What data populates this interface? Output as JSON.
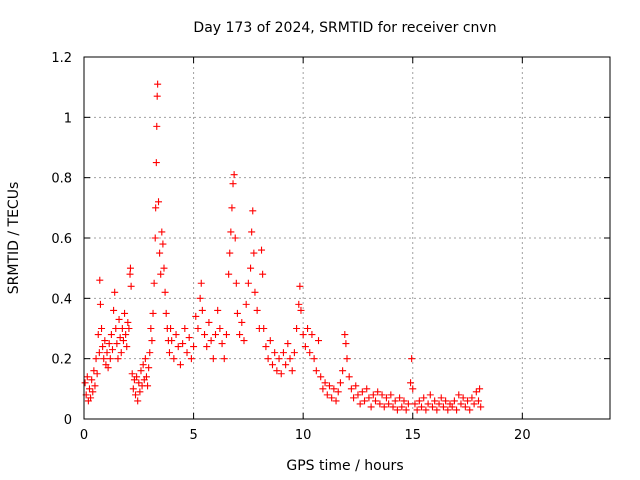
{
  "chart_data": {
    "type": "scatter",
    "title": "Day 173 of 2024, SRMTID for receiver cnvn",
    "xlabel": "GPS time / hours",
    "ylabel": "SRMTID / TECUs",
    "xlim": [
      0,
      24
    ],
    "ylim": [
      0,
      1.2
    ],
    "xticks": [
      0,
      5,
      10,
      15,
      20
    ],
    "xtick_labels": [
      "0",
      "5",
      "10",
      "15",
      "20"
    ],
    "yticks": [
      0,
      0.2,
      0.4,
      0.6,
      0.8,
      1.0,
      1.2
    ],
    "ytick_labels": [
      "0",
      "0.2",
      "0.4",
      "0.6",
      "0.8",
      "1",
      "1.2"
    ],
    "grid": true,
    "marker": "+",
    "color": "#ff0000",
    "series": [
      {
        "name": "SRMTID",
        "points": [
          [
            0.05,
            0.12
          ],
          [
            0.1,
            0.08
          ],
          [
            0.15,
            0.14
          ],
          [
            0.2,
            0.06
          ],
          [
            0.25,
            0.1
          ],
          [
            0.3,
            0.07
          ],
          [
            0.35,
            0.13
          ],
          [
            0.4,
            0.09
          ],
          [
            0.45,
            0.16
          ],
          [
            0.5,
            0.11
          ],
          [
            0.55,
            0.2
          ],
          [
            0.6,
            0.15
          ],
          [
            0.65,
            0.28
          ],
          [
            0.7,
            0.22
          ],
          [
            0.72,
            0.46
          ],
          [
            0.75,
            0.38
          ],
          [
            0.8,
            0.3
          ],
          [
            0.85,
            0.24
          ],
          [
            0.9,
            0.2
          ],
          [
            0.95,
            0.26
          ],
          [
            1.0,
            0.18
          ],
          [
            1.05,
            0.22
          ],
          [
            1.1,
            0.17
          ],
          [
            1.15,
            0.25
          ],
          [
            1.2,
            0.2
          ],
          [
            1.25,
            0.28
          ],
          [
            1.3,
            0.23
          ],
          [
            1.35,
            0.36
          ],
          [
            1.4,
            0.42
          ],
          [
            1.45,
            0.3
          ],
          [
            1.5,
            0.25
          ],
          [
            1.55,
            0.2
          ],
          [
            1.6,
            0.33
          ],
          [
            1.65,
            0.27
          ],
          [
            1.7,
            0.22
          ],
          [
            1.75,
            0.3
          ],
          [
            1.8,
            0.26
          ],
          [
            1.85,
            0.35
          ],
          [
            1.9,
            0.28
          ],
          [
            1.95,
            0.24
          ],
          [
            2.0,
            0.32
          ],
          [
            2.05,
            0.3
          ],
          [
            2.1,
            0.48
          ],
          [
            2.12,
            0.5
          ],
          [
            2.15,
            0.44
          ],
          [
            2.2,
            0.15
          ],
          [
            2.25,
            0.1
          ],
          [
            2.3,
            0.13
          ],
          [
            2.35,
            0.08
          ],
          [
            2.4,
            0.14
          ],
          [
            2.45,
            0.06
          ],
          [
            2.5,
            0.12
          ],
          [
            2.55,
            0.09
          ],
          [
            2.6,
            0.16
          ],
          [
            2.65,
            0.11
          ],
          [
            2.7,
            0.18
          ],
          [
            2.75,
            0.13
          ],
          [
            2.8,
            0.2
          ],
          [
            2.85,
            0.14
          ],
          [
            2.9,
            0.11
          ],
          [
            2.95,
            0.17
          ],
          [
            3.0,
            0.22
          ],
          [
            3.05,
            0.3
          ],
          [
            3.1,
            0.26
          ],
          [
            3.15,
            0.35
          ],
          [
            3.2,
            0.45
          ],
          [
            3.25,
            0.6
          ],
          [
            3.27,
            0.7
          ],
          [
            3.3,
            0.85
          ],
          [
            3.32,
            0.97
          ],
          [
            3.34,
            1.07
          ],
          [
            3.36,
            1.11
          ],
          [
            3.4,
            0.72
          ],
          [
            3.45,
            0.55
          ],
          [
            3.5,
            0.48
          ],
          [
            3.55,
            0.62
          ],
          [
            3.6,
            0.58
          ],
          [
            3.65,
            0.5
          ],
          [
            3.7,
            0.42
          ],
          [
            3.75,
            0.35
          ],
          [
            3.8,
            0.3
          ],
          [
            3.85,
            0.26
          ],
          [
            3.9,
            0.22
          ],
          [
            3.95,
            0.3
          ],
          [
            4.0,
            0.26
          ],
          [
            4.1,
            0.2
          ],
          [
            4.2,
            0.28
          ],
          [
            4.3,
            0.24
          ],
          [
            4.4,
            0.18
          ],
          [
            4.5,
            0.25
          ],
          [
            4.6,
            0.3
          ],
          [
            4.7,
            0.22
          ],
          [
            4.8,
            0.27
          ],
          [
            4.9,
            0.2
          ],
          [
            5.0,
            0.24
          ],
          [
            5.1,
            0.34
          ],
          [
            5.2,
            0.3
          ],
          [
            5.3,
            0.4
          ],
          [
            5.35,
            0.45
          ],
          [
            5.4,
            0.36
          ],
          [
            5.5,
            0.28
          ],
          [
            5.6,
            0.24
          ],
          [
            5.7,
            0.32
          ],
          [
            5.8,
            0.26
          ],
          [
            5.9,
            0.2
          ],
          [
            6.0,
            0.28
          ],
          [
            6.1,
            0.36
          ],
          [
            6.2,
            0.3
          ],
          [
            6.3,
            0.25
          ],
          [
            6.4,
            0.2
          ],
          [
            6.5,
            0.28
          ],
          [
            6.6,
            0.48
          ],
          [
            6.65,
            0.55
          ],
          [
            6.7,
            0.62
          ],
          [
            6.75,
            0.7
          ],
          [
            6.8,
            0.78
          ],
          [
            6.85,
            0.81
          ],
          [
            6.9,
            0.6
          ],
          [
            6.95,
            0.45
          ],
          [
            7.0,
            0.35
          ],
          [
            7.1,
            0.28
          ],
          [
            7.2,
            0.32
          ],
          [
            7.3,
            0.26
          ],
          [
            7.4,
            0.38
          ],
          [
            7.5,
            0.45
          ],
          [
            7.6,
            0.5
          ],
          [
            7.65,
            0.62
          ],
          [
            7.7,
            0.69
          ],
          [
            7.75,
            0.55
          ],
          [
            7.8,
            0.42
          ],
          [
            7.9,
            0.36
          ],
          [
            8.0,
            0.3
          ],
          [
            8.1,
            0.56
          ],
          [
            8.15,
            0.48
          ],
          [
            8.2,
            0.3
          ],
          [
            8.3,
            0.24
          ],
          [
            8.4,
            0.2
          ],
          [
            8.5,
            0.26
          ],
          [
            8.6,
            0.18
          ],
          [
            8.7,
            0.22
          ],
          [
            8.8,
            0.16
          ],
          [
            8.9,
            0.2
          ],
          [
            9.0,
            0.15
          ],
          [
            9.1,
            0.22
          ],
          [
            9.2,
            0.18
          ],
          [
            9.3,
            0.25
          ],
          [
            9.4,
            0.2
          ],
          [
            9.5,
            0.16
          ],
          [
            9.6,
            0.22
          ],
          [
            9.7,
            0.3
          ],
          [
            9.8,
            0.38
          ],
          [
            9.85,
            0.44
          ],
          [
            9.9,
            0.36
          ],
          [
            10.0,
            0.28
          ],
          [
            10.1,
            0.24
          ],
          [
            10.2,
            0.3
          ],
          [
            10.3,
            0.22
          ],
          [
            10.4,
            0.28
          ],
          [
            10.5,
            0.2
          ],
          [
            10.6,
            0.16
          ],
          [
            10.7,
            0.26
          ],
          [
            10.8,
            0.14
          ],
          [
            10.9,
            0.1
          ],
          [
            11.0,
            0.12
          ],
          [
            11.1,
            0.08
          ],
          [
            11.2,
            0.11
          ],
          [
            11.3,
            0.07
          ],
          [
            11.4,
            0.1
          ],
          [
            11.5,
            0.06
          ],
          [
            11.6,
            0.09
          ],
          [
            11.7,
            0.12
          ],
          [
            11.8,
            0.16
          ],
          [
            11.9,
            0.28
          ],
          [
            11.95,
            0.25
          ],
          [
            12.0,
            0.2
          ],
          [
            12.1,
            0.14
          ],
          [
            12.2,
            0.1
          ],
          [
            12.3,
            0.07
          ],
          [
            12.4,
            0.11
          ],
          [
            12.5,
            0.08
          ],
          [
            12.6,
            0.05
          ],
          [
            12.7,
            0.09
          ],
          [
            12.8,
            0.06
          ],
          [
            12.9,
            0.1
          ],
          [
            13.0,
            0.07
          ],
          [
            13.1,
            0.04
          ],
          [
            13.2,
            0.08
          ],
          [
            13.3,
            0.06
          ],
          [
            13.4,
            0.09
          ],
          [
            13.5,
            0.05
          ],
          [
            13.6,
            0.08
          ],
          [
            13.7,
            0.04
          ],
          [
            13.8,
            0.07
          ],
          [
            13.9,
            0.05
          ],
          [
            14.0,
            0.08
          ],
          [
            14.1,
            0.04
          ],
          [
            14.2,
            0.06
          ],
          [
            14.3,
            0.03
          ],
          [
            14.4,
            0.07
          ],
          [
            14.5,
            0.04
          ],
          [
            14.6,
            0.06
          ],
          [
            14.7,
            0.03
          ],
          [
            14.8,
            0.05
          ],
          [
            14.9,
            0.12
          ],
          [
            14.95,
            0.2
          ],
          [
            15.0,
            0.1
          ],
          [
            15.1,
            0.05
          ],
          [
            15.2,
            0.03
          ],
          [
            15.3,
            0.06
          ],
          [
            15.4,
            0.04
          ],
          [
            15.5,
            0.07
          ],
          [
            15.6,
            0.03
          ],
          [
            15.7,
            0.05
          ],
          [
            15.8,
            0.08
          ],
          [
            15.9,
            0.04
          ],
          [
            16.0,
            0.06
          ],
          [
            16.1,
            0.03
          ],
          [
            16.2,
            0.05
          ],
          [
            16.3,
            0.07
          ],
          [
            16.4,
            0.04
          ],
          [
            16.5,
            0.06
          ],
          [
            16.6,
            0.03
          ],
          [
            16.7,
            0.05
          ],
          [
            16.8,
            0.04
          ],
          [
            16.9,
            0.06
          ],
          [
            17.0,
            0.03
          ],
          [
            17.1,
            0.08
          ],
          [
            17.2,
            0.05
          ],
          [
            17.3,
            0.07
          ],
          [
            17.4,
            0.04
          ],
          [
            17.5,
            0.06
          ],
          [
            17.6,
            0.03
          ],
          [
            17.7,
            0.07
          ],
          [
            17.8,
            0.05
          ],
          [
            17.9,
            0.09
          ],
          [
            18.0,
            0.06
          ],
          [
            18.05,
            0.1
          ],
          [
            18.1,
            0.04
          ]
        ]
      }
    ]
  }
}
